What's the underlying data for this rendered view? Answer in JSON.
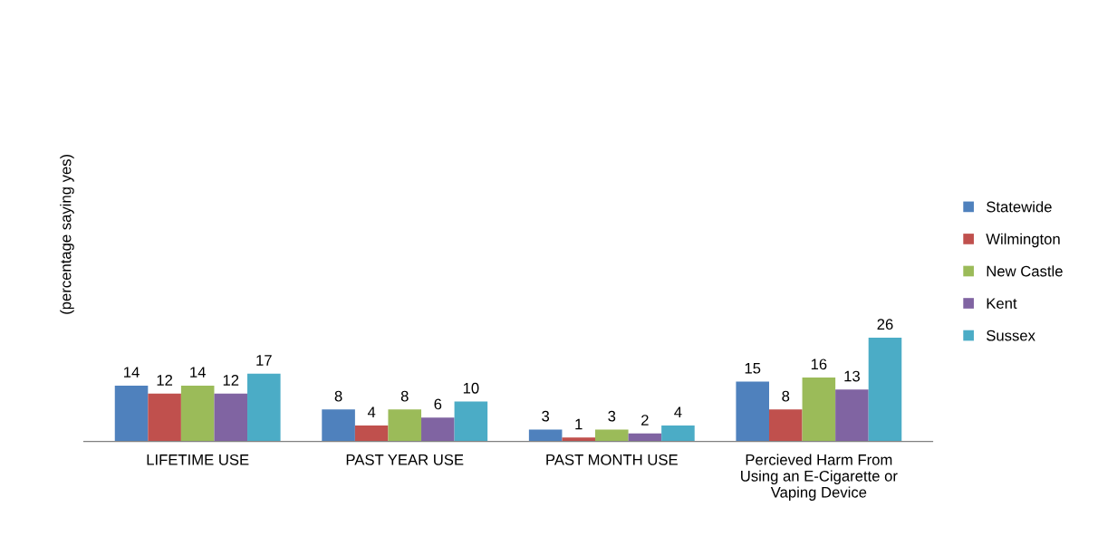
{
  "chart_data": {
    "type": "bar",
    "ylabel": "(percentage saying yes)",
    "categories": [
      "LIFETIME USE",
      "PAST YEAR USE",
      "PAST MONTH USE",
      "Percieved Harm From\nUsing an E-Cigarette or\nVaping Device"
    ],
    "series": [
      {
        "name": "Statewide",
        "color": "#4f81bd",
        "values": [
          14,
          8,
          3,
          15
        ]
      },
      {
        "name": "Wilmington",
        "color": "#c0504d",
        "values": [
          12,
          4,
          1,
          8
        ]
      },
      {
        "name": "New Castle",
        "color": "#9bbb59",
        "values": [
          14,
          8,
          3,
          16
        ]
      },
      {
        "name": "Kent",
        "color": "#8064a2",
        "values": [
          12,
          6,
          2,
          13
        ]
      },
      {
        "name": "Sussex",
        "color": "#4bacc6",
        "values": [
          17,
          10,
          4,
          26
        ]
      }
    ],
    "tick_labels": "x",
    "data_labels": true,
    "legend": "right",
    "grid": false
  }
}
